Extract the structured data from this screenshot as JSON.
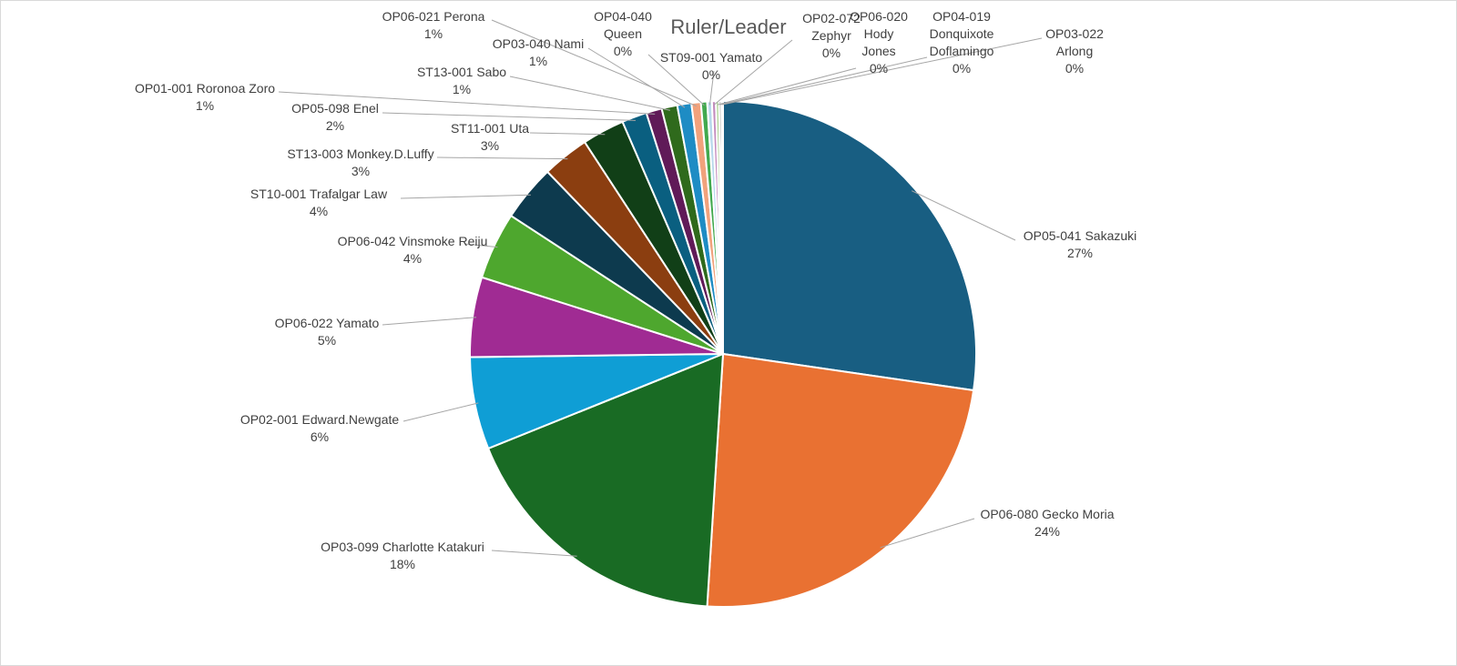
{
  "chart_data": {
    "type": "pie",
    "title": "Ruler/Leader",
    "slices": [
      {
        "name": "OP05-041 Sakazuki",
        "value": 27.3,
        "pct": "27%",
        "color": "#185E82"
      },
      {
        "name": "OP06-080 Gecko Moria",
        "value": 23.7,
        "pct": "24%",
        "color": "#E97132"
      },
      {
        "name": "OP03-099 Charlotte Katakuri",
        "value": 17.9,
        "pct": "18%",
        "color": "#196B24"
      },
      {
        "name": "OP02-001 Edward.Newgate",
        "value": 5.9,
        "pct": "6%",
        "color": "#0F9ED5"
      },
      {
        "name": "OP06-022 Yamato",
        "value": 5.1,
        "pct": "5%",
        "color": "#A02B93"
      },
      {
        "name": "OP06-042 Vinsmoke Reiju",
        "value": 4.3,
        "pct": "4%",
        "color": "#4EA72E"
      },
      {
        "name": "ST10-001 Trafalgar Law",
        "value": 3.6,
        "pct": "4%",
        "color": "#0D3A4E"
      },
      {
        "name": "ST13-003 Monkey.D.Luffy",
        "value": 3.0,
        "pct": "3%",
        "color": "#8B3E10"
      },
      {
        "name": "ST11-001 Uta",
        "value": 2.7,
        "pct": "3%",
        "color": "#113F17"
      },
      {
        "name": "OP05-098 Enel",
        "value": 1.6,
        "pct": "2%",
        "color": "#0A5F80"
      },
      {
        "name": "OP01-001 Roronoa Zoro",
        "value": 1.0,
        "pct": "1%",
        "color": "#601A58"
      },
      {
        "name": "ST13-001 Sabo",
        "value": 1.0,
        "pct": "1%",
        "color": "#2F6A1C"
      },
      {
        "name": "OP03-040 Nami",
        "value": 0.9,
        "pct": "1%",
        "color": "#1E8CC4"
      },
      {
        "name": "OP06-021 Perona",
        "value": 0.6,
        "pct": "1%",
        "color": "#F1A27C"
      },
      {
        "name": "OP04-040 Queen",
        "value": 0.4,
        "pct": "0%",
        "color": "#42A94E"
      },
      {
        "name": "ST09-001 Yamato",
        "value": 0.3,
        "pct": "0%",
        "color": "#B9D9EC"
      },
      {
        "name": "OP02-072 Zephyr",
        "value": 0.25,
        "pct": "0%",
        "color": "#C48BBE"
      },
      {
        "name": "OP06-020 Hody Jones",
        "value": 0.2,
        "pct": "0%",
        "color": "#A9D18E"
      },
      {
        "name": "OP04-019 Donquixote Doflamingo",
        "value": 0.15,
        "pct": "0%",
        "color": "#7F7F7F"
      },
      {
        "name": "OP03-022 Arlong",
        "value": 0.1,
        "pct": "0%",
        "color": "#BFBFBF"
      }
    ]
  }
}
